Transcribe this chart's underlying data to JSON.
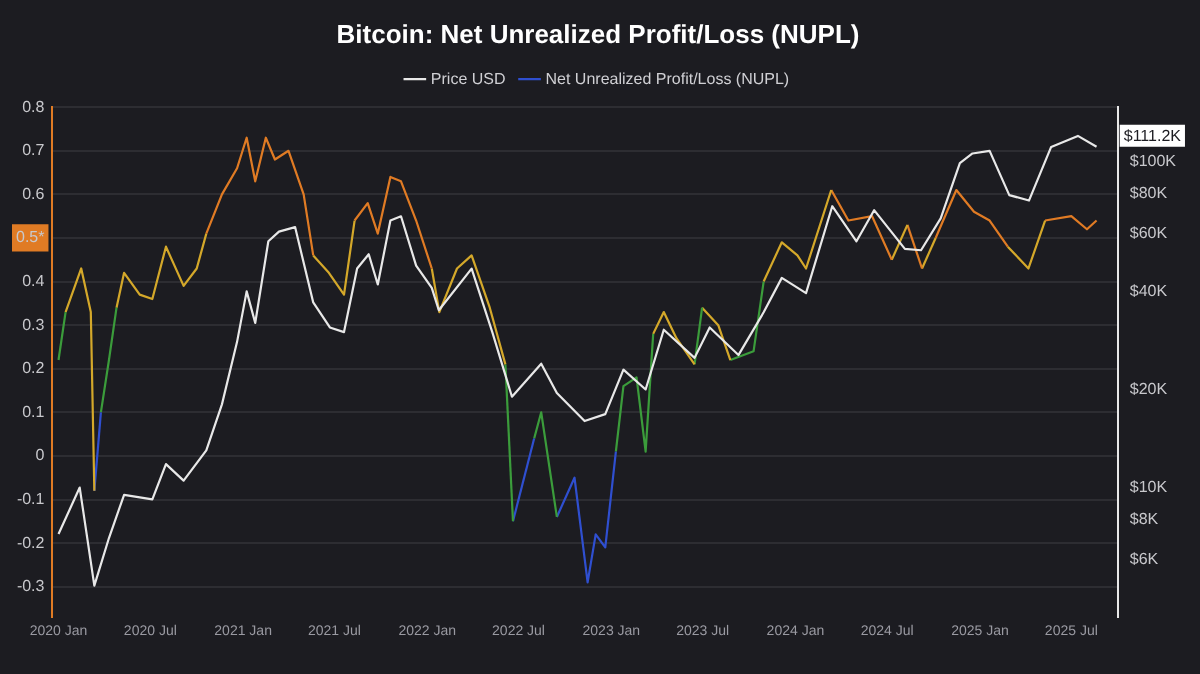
{
  "chart_data": {
    "type": "line",
    "title": "Bitcoin: Net Unrealized Profit/Loss (NUPL)",
    "legend": "top",
    "grid": "y",
    "log": "y2",
    "marker": "none",
    "line_style": "solid",
    "xlim": [
      "2019-12-20",
      "2025-10-01"
    ],
    "xticks": [
      {
        "value": "2020-01-01",
        "label": "2020 Jan"
      },
      {
        "value": "2020-07-01",
        "label": "2020 Jul"
      },
      {
        "value": "2021-01-01",
        "label": "2021 Jan"
      },
      {
        "value": "2021-07-01",
        "label": "2021 Jul"
      },
      {
        "value": "2022-01-01",
        "label": "2022 Jan"
      },
      {
        "value": "2022-07-01",
        "label": "2022 Jul"
      },
      {
        "value": "2023-01-01",
        "label": "2023 Jan"
      },
      {
        "value": "2023-07-01",
        "label": "2023 Jul"
      },
      {
        "value": "2024-01-01",
        "label": "2024 Jan"
      },
      {
        "value": "2024-07-01",
        "label": "2024 Jul"
      },
      {
        "value": "2025-01-01",
        "label": "2025 Jan"
      },
      {
        "value": "2025-07-01",
        "label": "2025 Jul"
      }
    ],
    "ylim": [
      -0.37,
      0.8
    ],
    "yticks": [
      -0.3,
      -0.2,
      -0.1,
      0,
      0.1,
      0.2,
      0.3,
      0.4,
      {
        "value": 0.5,
        "label": "0.5*"
      },
      0.6,
      0.7,
      0.8
    ],
    "y2lim": [
      4000,
      147000
    ],
    "y2ticks": [
      {
        "value": 6000,
        "label": "$6K"
      },
      {
        "value": 8000,
        "label": "$8K"
      },
      {
        "value": 10000,
        "label": "$10K"
      },
      {
        "value": 20000,
        "label": "$20K"
      },
      {
        "value": 40000,
        "label": "$40K"
      },
      {
        "value": 60000,
        "label": "$60K"
      },
      {
        "value": 80000,
        "label": "$80K"
      },
      {
        "value": 100000,
        "label": "$100K"
      }
    ],
    "annotations": [
      "$111.2K"
    ],
    "series": [
      {
        "name": "Price USD",
        "color": "#e8e8e8",
        "axis": "y2",
        "x": [
          "2020-01-01",
          "2020-02-12",
          "2020-03-12",
          "2020-04-10",
          "2020-05-10",
          "2020-07-05",
          "2020-08-01",
          "2020-09-05",
          "2020-10-20",
          "2020-11-20",
          "2020-12-20",
          "2021-01-08",
          "2021-01-25",
          "2021-02-20",
          "2021-03-13",
          "2021-04-14",
          "2021-05-20",
          "2021-06-22",
          "2021-07-20",
          "2021-08-15",
          "2021-09-07",
          "2021-09-25",
          "2021-10-20",
          "2021-11-10",
          "2021-12-10",
          "2022-01-10",
          "2022-01-24",
          "2022-03-30",
          "2022-05-10",
          "2022-06-18",
          "2022-08-15",
          "2022-09-15",
          "2022-11-09",
          "2022-12-20",
          "2023-01-25",
          "2023-03-10",
          "2023-04-15",
          "2023-06-15",
          "2023-07-15",
          "2023-09-10",
          "2023-10-30",
          "2023-12-05",
          "2024-01-22",
          "2024-03-14",
          "2024-05-01",
          "2024-06-05",
          "2024-08-05",
          "2024-09-06",
          "2024-10-15",
          "2024-11-22",
          "2024-12-17",
          "2025-01-20",
          "2025-02-28",
          "2025-04-08",
          "2025-05-22",
          "2025-07-14",
          "2025-08-20"
        ],
        "values": [
          7200,
          10000,
          5000,
          7000,
          9500,
          9200,
          11800,
          10500,
          13000,
          18000,
          28000,
          40000,
          32000,
          57000,
          61000,
          63000,
          37000,
          31000,
          30000,
          47000,
          52000,
          42000,
          66000,
          68000,
          48000,
          41000,
          35000,
          47000,
          30000,
          19000,
          24000,
          19500,
          16000,
          16800,
          23000,
          20000,
          30500,
          25000,
          31000,
          25500,
          34500,
          44000,
          39500,
          73000,
          57000,
          71000,
          54000,
          53500,
          67000,
          99000,
          106000,
          108000,
          79000,
          76000,
          111000,
          120000,
          111200
        ]
      },
      {
        "color": "#3b9c3b",
        "x": [
          "2020-01-01",
          "2020-01-15"
        ],
        "values": [
          0.22,
          0.33
        ]
      },
      {
        "color": "#d4a82a",
        "x": [
          "2020-01-15",
          "2020-02-15",
          "2020-03-05",
          "2020-03-12"
        ],
        "values": [
          0.33,
          0.43,
          0.33,
          -0.08
        ]
      },
      {
        "name": "Net Unrealized Profit/Loss (NUPL)",
        "color": "#2f4fd0",
        "x": [
          "2020-03-12",
          "2020-03-25"
        ],
        "values": [
          -0.08,
          0.1
        ]
      },
      {
        "color": "#3b9c3b",
        "x": [
          "2020-03-25",
          "2020-04-10",
          "2020-04-25"
        ],
        "values": [
          0.1,
          0.22,
          0.34
        ]
      },
      {
        "color": "#d4a82a",
        "x": [
          "2020-04-25",
          "2020-05-10",
          "2020-06-10",
          "2020-07-05",
          "2020-08-01",
          "2020-09-05",
          "2020-10-01",
          "2020-10-20"
        ],
        "values": [
          0.34,
          0.42,
          0.37,
          0.36,
          0.48,
          0.39,
          0.43,
          0.51
        ]
      },
      {
        "color": "#e07b24",
        "x": [
          "2020-10-20",
          "2020-11-20",
          "2020-12-20",
          "2021-01-08",
          "2021-01-25",
          "2021-02-15",
          "2021-03-05",
          "2021-04-01",
          "2021-05-01",
          "2021-05-20"
        ],
        "values": [
          0.51,
          0.6,
          0.66,
          0.73,
          0.63,
          0.73,
          0.68,
          0.7,
          0.6,
          0.46
        ]
      },
      {
        "color": "#d4a82a",
        "x": [
          "2021-05-20",
          "2021-06-20",
          "2021-07-20",
          "2021-08-10"
        ],
        "values": [
          0.46,
          0.42,
          0.37,
          0.54
        ]
      },
      {
        "color": "#e07b24",
        "x": [
          "2021-08-10",
          "2021-09-05",
          "2021-09-25",
          "2021-10-20",
          "2021-11-10",
          "2021-12-10",
          "2022-01-10"
        ],
        "values": [
          0.54,
          0.58,
          0.51,
          0.64,
          0.63,
          0.54,
          0.43
        ]
      },
      {
        "color": "#d4a82a",
        "x": [
          "2022-01-10",
          "2022-01-25",
          "2022-03-01",
          "2022-03-30",
          "2022-05-05",
          "2022-06-05"
        ],
        "values": [
          0.43,
          0.33,
          0.43,
          0.46,
          0.34,
          0.21
        ]
      },
      {
        "color": "#3b9c3b",
        "x": [
          "2022-06-05",
          "2022-06-20"
        ],
        "values": [
          0.21,
          -0.15
        ]
      },
      {
        "color": "#2f4fd0",
        "x": [
          "2022-06-20",
          "2022-08-01"
        ],
        "values": [
          -0.15,
          0.04
        ]
      },
      {
        "color": "#3b9c3b",
        "x": [
          "2022-08-01",
          "2022-08-15",
          "2022-09-15"
        ],
        "values": [
          0.04,
          0.1,
          -0.14
        ]
      },
      {
        "color": "#2f4fd0",
        "x": [
          "2022-09-15",
          "2022-10-20",
          "2022-11-15",
          "2022-12-01",
          "2022-12-20",
          "2023-01-10"
        ],
        "values": [
          -0.14,
          -0.05,
          -0.29,
          -0.18,
          -0.21,
          0.01
        ]
      },
      {
        "color": "#3b9c3b",
        "x": [
          "2023-01-10",
          "2023-01-25",
          "2023-02-20",
          "2023-03-10",
          "2023-03-25"
        ],
        "values": [
          0.01,
          0.16,
          0.18,
          0.01,
          0.28
        ]
      },
      {
        "color": "#d4a82a",
        "x": [
          "2023-03-25",
          "2023-04-15",
          "2023-05-10",
          "2023-06-15"
        ],
        "values": [
          0.28,
          0.33,
          0.27,
          0.21
        ]
      },
      {
        "color": "#3b9c3b",
        "x": [
          "2023-06-15",
          "2023-06-30"
        ],
        "values": [
          0.21,
          0.34
        ]
      },
      {
        "color": "#d4a82a",
        "x": [
          "2023-06-30",
          "2023-08-01",
          "2023-08-25"
        ],
        "values": [
          0.34,
          0.3,
          0.22
        ]
      },
      {
        "color": "#3b9c3b",
        "x": [
          "2023-08-25",
          "2023-10-10",
          "2023-10-30"
        ],
        "values": [
          0.22,
          0.24,
          0.4
        ]
      },
      {
        "color": "#d4a82a",
        "x": [
          "2023-10-30",
          "2023-12-05",
          "2024-01-05",
          "2024-01-22",
          "2024-03-12"
        ],
        "values": [
          0.4,
          0.49,
          0.46,
          0.43,
          0.61
        ]
      },
      {
        "color": "#e07b24",
        "x": [
          "2024-03-12",
          "2024-04-15",
          "2024-06-01",
          "2024-07-10"
        ],
        "values": [
          0.61,
          0.54,
          0.55,
          0.45
        ]
      },
      {
        "color": "#d4a82a",
        "x": [
          "2024-07-10",
          "2024-08-10"
        ],
        "values": [
          0.45,
          0.53
        ]
      },
      {
        "color": "#e07b24",
        "x": [
          "2024-08-10",
          "2024-09-08"
        ],
        "values": [
          0.53,
          0.43
        ]
      },
      {
        "color": "#d4a82a",
        "x": [
          "2024-09-08",
          "2024-10-05"
        ],
        "values": [
          0.43,
          0.5
        ]
      },
      {
        "color": "#e07b24",
        "x": [
          "2024-10-05",
          "2024-11-15",
          "2024-12-20",
          "2025-01-20",
          "2025-02-25"
        ],
        "values": [
          0.5,
          0.61,
          0.56,
          0.54,
          0.48
        ]
      },
      {
        "color": "#d4a82a",
        "x": [
          "2025-02-25",
          "2025-04-07",
          "2025-05-10"
        ],
        "values": [
          0.48,
          0.43,
          0.54
        ]
      },
      {
        "color": "#e07b24",
        "x": [
          "2025-05-10",
          "2025-07-01",
          "2025-08-01",
          "2025-08-20"
        ],
        "values": [
          0.54,
          0.55,
          0.52,
          0.54
        ]
      }
    ]
  }
}
